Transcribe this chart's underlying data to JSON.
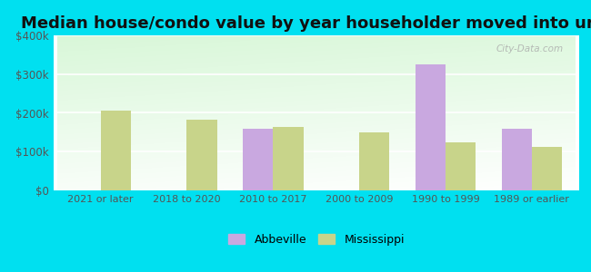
{
  "title": "Median house/condo value by year householder moved into unit",
  "categories": [
    "2021 or later",
    "2018 to 2020",
    "2010 to 2017",
    "2000 to 2009",
    "1990 to 1999",
    "1989 or earlier"
  ],
  "abbeville_values": [
    null,
    null,
    158000,
    null,
    325000,
    158000
  ],
  "mississippi_values": [
    205000,
    183000,
    163000,
    150000,
    125000,
    113000
  ],
  "abbeville_color": "#c9a8e0",
  "mississippi_color": "#c8d48a",
  "background_outer": "#00e0f0",
  "ylim": [
    0,
    400000
  ],
  "yticks": [
    0,
    100000,
    200000,
    300000,
    400000
  ],
  "ytick_labels": [
    "$0",
    "$100k",
    "$200k",
    "$300k",
    "$400k"
  ],
  "bar_width": 0.35,
  "title_fontsize": 13,
  "legend_labels": [
    "Abbeville",
    "Mississippi"
  ],
  "watermark": "City-Data.com"
}
